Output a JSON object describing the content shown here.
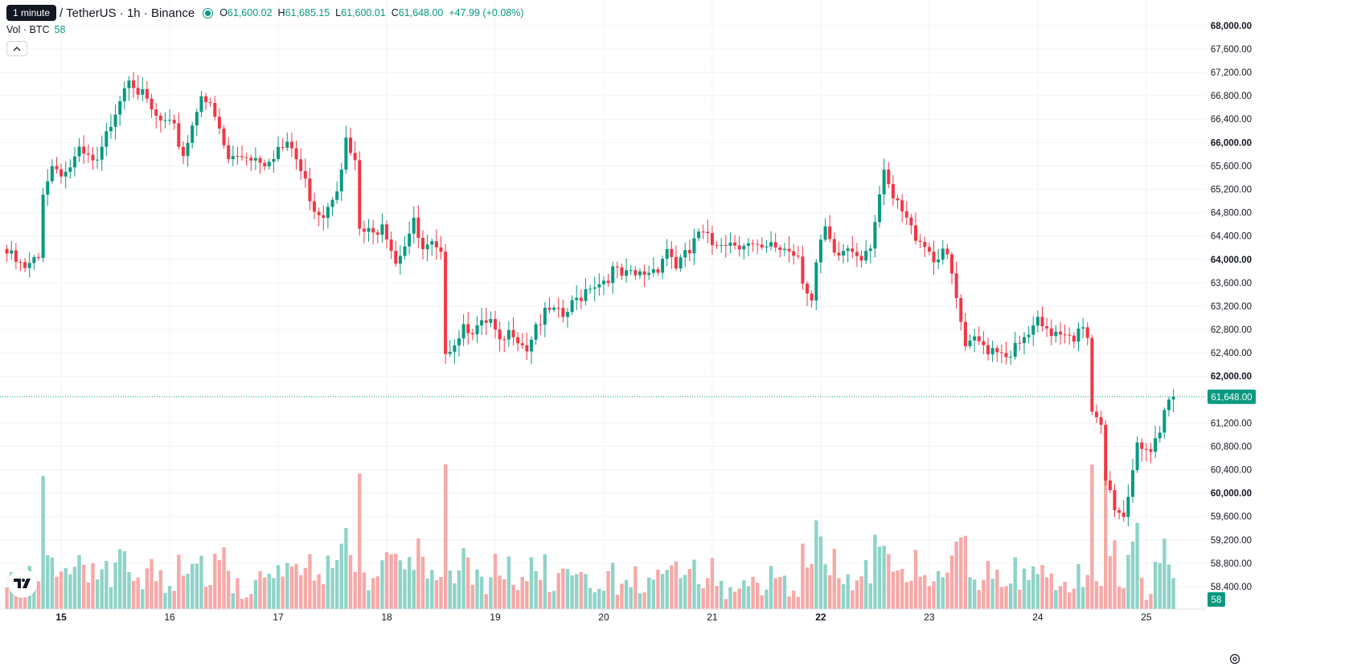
{
  "header": {
    "tooltip": "1 minute",
    "symbol": "/ TetherUS · 1h · Binance",
    "ohlc": [
      {
        "key": "O",
        "value": "61,600.02"
      },
      {
        "key": "H",
        "value": "61,685.15"
      },
      {
        "key": "L",
        "value": "61,600.01"
      },
      {
        "key": "C",
        "value": "61,648.00"
      }
    ],
    "change": "+47.99 (+0.08%)"
  },
  "volume_legend": {
    "label": "Vol · BTC",
    "value": "58"
  },
  "colors": {
    "up": "#089981",
    "down": "#f23645",
    "up_vol": "#8fd3c8",
    "down_vol": "#f7a9a7",
    "grid": "#f0f3fa",
    "text": "#131722"
  },
  "icons": {
    "collapse": "chevron-up-icon",
    "logo": "tradingview-logo-icon",
    "settings": "gear-icon"
  },
  "chart_data": {
    "type": "candlestick",
    "interval": "1h",
    "y_axis_labels": [
      "68,000.00",
      "67,600.00",
      "67,200.00",
      "66,800.00",
      "66,400.00",
      "66,000.00",
      "65,600.00",
      "65,200.00",
      "64,800.00",
      "64,400.00",
      "64,000.00",
      "63,600.00",
      "63,200.00",
      "62,800.00",
      "62,400.00",
      "62,000.00",
      "61,200.00",
      "60,800.00",
      "60,400.00",
      "60,000.00",
      "59,600.00",
      "59,200.00",
      "58,800.00",
      "58,400.00"
    ],
    "bold_y_labels": [
      "68,000.00",
      "66,000.00",
      "64,000.00",
      "62,000.00",
      "60,000.00"
    ],
    "ylim": [
      58200,
      68150
    ],
    "x_axis_labels": [
      {
        "label": "15",
        "idx": 12,
        "bold": true
      },
      {
        "label": "16",
        "idx": 36,
        "bold": false
      },
      {
        "label": "17",
        "idx": 60,
        "bold": false
      },
      {
        "label": "18",
        "idx": 84,
        "bold": false
      },
      {
        "label": "19",
        "idx": 108,
        "bold": false
      },
      {
        "label": "20",
        "idx": 132,
        "bold": false
      },
      {
        "label": "21",
        "idx": 156,
        "bold": false
      },
      {
        "label": "22",
        "idx": 180,
        "bold": true
      },
      {
        "label": "23",
        "idx": 204,
        "bold": false
      },
      {
        "label": "24",
        "idx": 228,
        "bold": false
      },
      {
        "label": "25",
        "idx": 252,
        "bold": false
      }
    ],
    "last_price": 61648,
    "last_price_label": "61,648.00",
    "volume_label": "58",
    "anchors": [
      [
        0,
        64100
      ],
      [
        4,
        63800
      ],
      [
        6,
        63950
      ],
      [
        7,
        64000
      ],
      [
        8,
        65200
      ],
      [
        10,
        65600
      ],
      [
        13,
        65500
      ],
      [
        16,
        65800
      ],
      [
        20,
        65600
      ],
      [
        22,
        66100
      ],
      [
        24,
        66600
      ],
      [
        27,
        67200
      ],
      [
        29,
        66900
      ],
      [
        33,
        66400
      ],
      [
        37,
        66200
      ],
      [
        39,
        65800
      ],
      [
        41,
        66300
      ],
      [
        43,
        66900
      ],
      [
        46,
        66400
      ],
      [
        49,
        65700
      ],
      [
        53,
        65800
      ],
      [
        57,
        65700
      ],
      [
        60,
        65900
      ],
      [
        63,
        65900
      ],
      [
        66,
        65300
      ],
      [
        68,
        64900
      ],
      [
        70,
        64800
      ],
      [
        73,
        65300
      ],
      [
        75,
        66000
      ],
      [
        77,
        65600
      ],
      [
        78,
        64500
      ],
      [
        81,
        64400
      ],
      [
        83,
        64700
      ],
      [
        86,
        64000
      ],
      [
        88,
        64300
      ],
      [
        90,
        64600
      ],
      [
        92,
        64100
      ],
      [
        94,
        64200
      ],
      [
        96,
        64000
      ],
      [
        97,
        62500
      ],
      [
        99,
        62600
      ],
      [
        101,
        62900
      ],
      [
        104,
        62800
      ],
      [
        107,
        62900
      ],
      [
        109,
        62500
      ],
      [
        112,
        62800
      ],
      [
        115,
        62500
      ],
      [
        117,
        62900
      ],
      [
        120,
        63100
      ],
      [
        123,
        63000
      ],
      [
        126,
        63300
      ],
      [
        129,
        63600
      ],
      [
        131,
        63600
      ],
      [
        134,
        63800
      ],
      [
        136,
        63700
      ],
      [
        139,
        63700
      ],
      [
        142,
        63800
      ],
      [
        144,
        63900
      ],
      [
        146,
        64200
      ],
      [
        148,
        63900
      ],
      [
        151,
        64100
      ],
      [
        152,
        64350
      ],
      [
        154,
        64400
      ],
      [
        156,
        64250
      ],
      [
        158,
        64350
      ],
      [
        160,
        64300
      ],
      [
        163,
        64300
      ],
      [
        165,
        64200
      ],
      [
        167,
        64100
      ],
      [
        169,
        64200
      ],
      [
        172,
        64200
      ],
      [
        175,
        64100
      ],
      [
        176,
        63700
      ],
      [
        178,
        63300
      ],
      [
        179,
        63900
      ],
      [
        181,
        64500
      ],
      [
        183,
        64000
      ],
      [
        186,
        64200
      ],
      [
        189,
        64100
      ],
      [
        191,
        64300
      ],
      [
        193,
        65100
      ],
      [
        194,
        65400
      ],
      [
        196,
        65000
      ],
      [
        198,
        64800
      ],
      [
        200,
        64500
      ],
      [
        203,
        64300
      ],
      [
        205,
        64000
      ],
      [
        207,
        64200
      ],
      [
        209,
        63700
      ],
      [
        210,
        63300
      ],
      [
        211,
        62900
      ],
      [
        212,
        62400
      ],
      [
        214,
        62600
      ],
      [
        217,
        62500
      ],
      [
        219,
        62500
      ],
      [
        221,
        62400
      ],
      [
        224,
        62500
      ],
      [
        226,
        62700
      ],
      [
        228,
        62900
      ],
      [
        230,
        62700
      ],
      [
        232,
        62800
      ],
      [
        234,
        62800
      ],
      [
        236,
        62700
      ],
      [
        237,
        62900
      ],
      [
        239,
        62600
      ],
      [
        240,
        61300
      ],
      [
        242,
        61100
      ],
      [
        243,
        60200
      ],
      [
        245,
        59800
      ],
      [
        247,
        59600
      ],
      [
        248,
        60000
      ],
      [
        250,
        60900
      ],
      [
        252,
        60800
      ],
      [
        253,
        60700
      ],
      [
        255,
        60900
      ],
      [
        256,
        61300
      ],
      [
        257,
        61550
      ],
      [
        258,
        61648
      ]
    ],
    "volume_scale_max": 100
  }
}
